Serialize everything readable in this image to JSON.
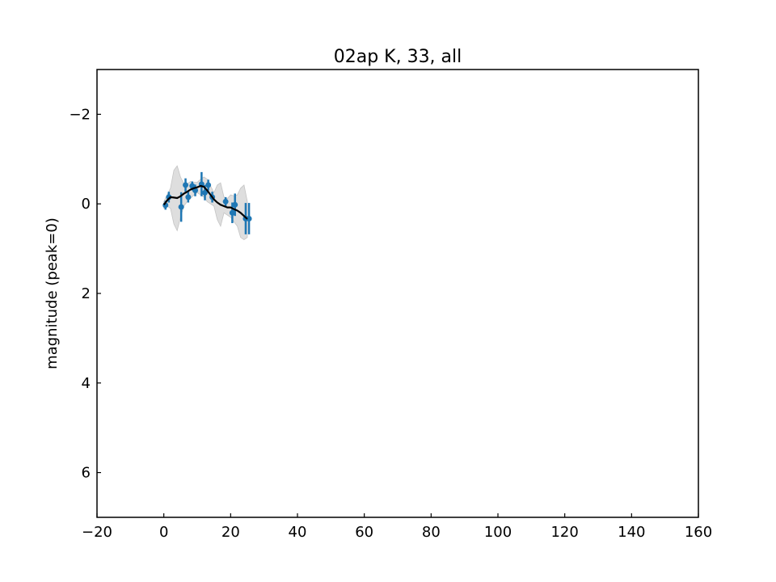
{
  "chart_data": {
    "type": "scatter",
    "title": "02ap K, 33, all",
    "xlabel": "",
    "ylabel": "magnitude (peak=0)",
    "xlim": [
      -20,
      160
    ],
    "ylim": [
      7,
      -3
    ],
    "y_inverted": true,
    "xticks": [
      -20,
      0,
      20,
      40,
      60,
      80,
      100,
      120,
      140,
      160
    ],
    "yticks": [
      -2,
      0,
      2,
      4,
      6
    ],
    "grid": false,
    "legend": "none",
    "colors": {
      "points": "#1f77b4",
      "fit": "#000000",
      "band": "#d3d3d3"
    },
    "series": [
      {
        "kind": "errorbar",
        "points": [
          {
            "x": 0.5,
            "y": 0.03,
            "err": 0.1
          },
          {
            "x": 1.5,
            "y": -0.15,
            "err": 0.12
          },
          {
            "x": 5.2,
            "y": 0.07,
            "err": 0.33
          },
          {
            "x": 6.5,
            "y": -0.42,
            "err": 0.15
          },
          {
            "x": 7.3,
            "y": -0.15,
            "err": 0.12
          },
          {
            "x": 8.5,
            "y": -0.4,
            "err": 0.1
          },
          {
            "x": 9.4,
            "y": -0.3,
            "err": 0.13
          },
          {
            "x": 11.3,
            "y": -0.44,
            "err": 0.27
          },
          {
            "x": 12.3,
            "y": -0.25,
            "err": 0.17
          },
          {
            "x": 13.3,
            "y": -0.42,
            "err": 0.12
          },
          {
            "x": 14.5,
            "y": -0.15,
            "err": 0.12
          },
          {
            "x": 18.5,
            "y": -0.05,
            "err": 0.1
          },
          {
            "x": 20.5,
            "y": 0.2,
            "err": 0.23
          },
          {
            "x": 21.3,
            "y": 0.02,
            "err": 0.25
          },
          {
            "x": 24.5,
            "y": 0.33,
            "err": 0.35
          },
          {
            "x": 25.5,
            "y": 0.33,
            "err": 0.35
          }
        ]
      },
      {
        "kind": "fit",
        "x": [
          0,
          1,
          2,
          3,
          4,
          5,
          6,
          7,
          8,
          9,
          10,
          11,
          12,
          13,
          14,
          15,
          16,
          17,
          18,
          19,
          20,
          21,
          22,
          23,
          24,
          25
        ],
        "y": [
          0.02,
          -0.08,
          -0.15,
          -0.14,
          -0.13,
          -0.17,
          -0.23,
          -0.27,
          -0.32,
          -0.35,
          -0.37,
          -0.4,
          -0.38,
          -0.3,
          -0.2,
          -0.1,
          -0.03,
          0.02,
          0.05,
          0.08,
          0.08,
          0.12,
          0.15,
          0.2,
          0.27,
          0.34
        ],
        "lower": [
          -0.05,
          -0.2,
          -0.35,
          -0.75,
          -0.85,
          -0.6,
          -0.45,
          -0.45,
          -0.5,
          -0.48,
          -0.48,
          -0.55,
          -0.6,
          -0.55,
          -0.4,
          -0.25,
          -0.42,
          -0.47,
          -0.15,
          -0.12,
          -0.2,
          -0.18,
          -0.2,
          -0.35,
          -0.42,
          -0.05
        ],
        "upper": [
          0.1,
          0.05,
          0.1,
          0.45,
          0.6,
          0.3,
          0.05,
          -0.05,
          -0.12,
          -0.2,
          -0.25,
          -0.2,
          -0.15,
          -0.05,
          0.0,
          0.05,
          0.35,
          0.5,
          0.2,
          0.25,
          0.3,
          0.4,
          0.5,
          0.75,
          0.8,
          0.75
        ]
      }
    ]
  }
}
